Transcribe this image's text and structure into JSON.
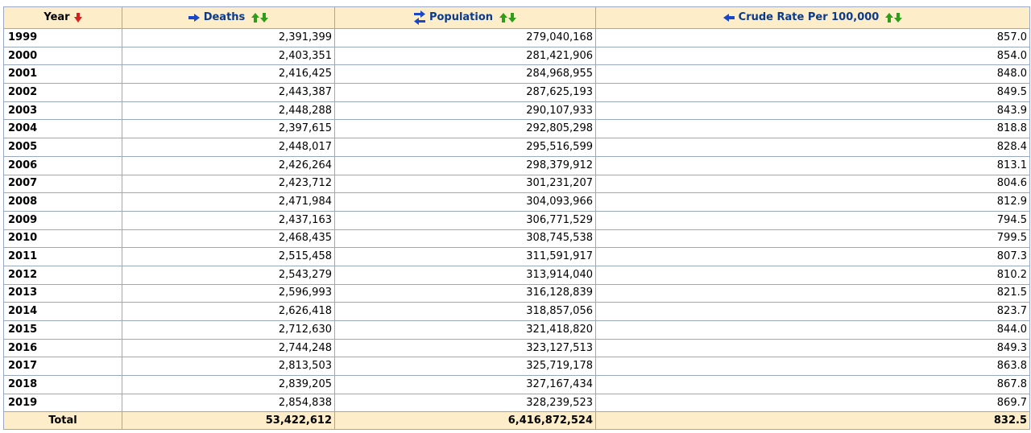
{
  "colors": {
    "header_bg": "#fdedc8",
    "header_text": "#0b3a8c",
    "border": "#9aa8c6",
    "sort_active": "#d62020",
    "sort_green": "#2e9e1a",
    "arrow_blue": "#1848c8"
  },
  "header": {
    "year": "Year",
    "deaths": "Deaths",
    "population": "Population",
    "rate": "Crude Rate Per 100,000"
  },
  "rows": [
    {
      "year": "1999",
      "deaths": "2,391,399",
      "population": "279,040,168",
      "rate": "857.0"
    },
    {
      "year": "2000",
      "deaths": "2,403,351",
      "population": "281,421,906",
      "rate": "854.0"
    },
    {
      "year": "2001",
      "deaths": "2,416,425",
      "population": "284,968,955",
      "rate": "848.0"
    },
    {
      "year": "2002",
      "deaths": "2,443,387",
      "population": "287,625,193",
      "rate": "849.5"
    },
    {
      "year": "2003",
      "deaths": "2,448,288",
      "population": "290,107,933",
      "rate": "843.9"
    },
    {
      "year": "2004",
      "deaths": "2,397,615",
      "population": "292,805,298",
      "rate": "818.8"
    },
    {
      "year": "2005",
      "deaths": "2,448,017",
      "population": "295,516,599",
      "rate": "828.4"
    },
    {
      "year": "2006",
      "deaths": "2,426,264",
      "population": "298,379,912",
      "rate": "813.1"
    },
    {
      "year": "2007",
      "deaths": "2,423,712",
      "population": "301,231,207",
      "rate": "804.6"
    },
    {
      "year": "2008",
      "deaths": "2,471,984",
      "population": "304,093,966",
      "rate": "812.9"
    },
    {
      "year": "2009",
      "deaths": "2,437,163",
      "population": "306,771,529",
      "rate": "794.5"
    },
    {
      "year": "2010",
      "deaths": "2,468,435",
      "population": "308,745,538",
      "rate": "799.5"
    },
    {
      "year": "2011",
      "deaths": "2,515,458",
      "population": "311,591,917",
      "rate": "807.3"
    },
    {
      "year": "2012",
      "deaths": "2,543,279",
      "population": "313,914,040",
      "rate": "810.2"
    },
    {
      "year": "2013",
      "deaths": "2,596,993",
      "population": "316,128,839",
      "rate": "821.5"
    },
    {
      "year": "2014",
      "deaths": "2,626,418",
      "population": "318,857,056",
      "rate": "823.7"
    },
    {
      "year": "2015",
      "deaths": "2,712,630",
      "population": "321,418,820",
      "rate": "844.0"
    },
    {
      "year": "2016",
      "deaths": "2,744,248",
      "population": "323,127,513",
      "rate": "849.3"
    },
    {
      "year": "2017",
      "deaths": "2,813,503",
      "population": "325,719,178",
      "rate": "863.8"
    },
    {
      "year": "2018",
      "deaths": "2,839,205",
      "population": "327,167,434",
      "rate": "867.8"
    },
    {
      "year": "2019",
      "deaths": "2,854,838",
      "population": "328,239,523",
      "rate": "869.7"
    }
  ],
  "footer": {
    "label": "Total",
    "deaths": "53,422,612",
    "population": "6,416,872,524",
    "rate": "832.5"
  },
  "icons": {
    "year_sort": "sort-descending-icon",
    "deaths_move": "move-right-icon",
    "population_move": "swap-icon",
    "rate_move": "move-left-icon",
    "sort_up": "sort-ascending-icon",
    "sort_down": "sort-descending-icon"
  }
}
